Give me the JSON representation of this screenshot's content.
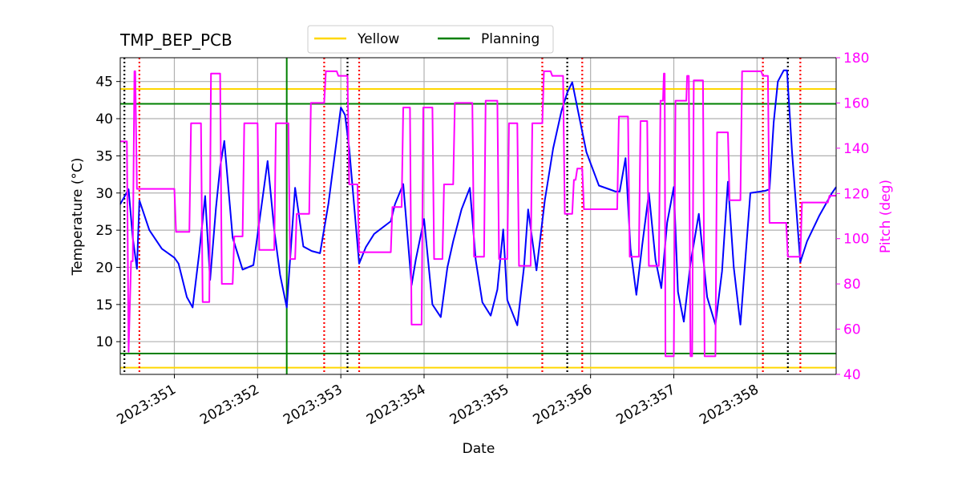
{
  "chart_data": {
    "type": "line",
    "title": "TMP_BEP_PCB",
    "xlabel": "Date",
    "ylabel_left": "Temperature ($^\\circ$C)",
    "ylabel_left_display": "Temperature (°C)",
    "ylabel_right": "Pitch (deg)",
    "xlim": [
      350.35,
      358.95
    ],
    "ylim_left": [
      5.6,
      48.2
    ],
    "ylim_right": [
      40,
      180
    ],
    "grid": true,
    "legend_position": "top-center",
    "x_ticks": [
      351,
      352,
      353,
      354,
      355,
      356,
      357,
      358
    ],
    "x_tick_labels": [
      "2023:351",
      "2023:352",
      "2023:353",
      "2023:354",
      "2023:355",
      "2023:356",
      "2023:357",
      "2023:358"
    ],
    "y_left_ticks": [
      10,
      15,
      20,
      25,
      30,
      35,
      40,
      45
    ],
    "y_right_ticks": [
      40,
      60,
      80,
      100,
      120,
      140,
      160,
      180
    ],
    "limits": [
      {
        "name": "Yellow",
        "color": "#ffd700",
        "values": [
          44.0,
          6.5
        ]
      },
      {
        "name": "Planning",
        "color": "#008000",
        "values": [
          42.0,
          8.4
        ]
      }
    ],
    "planning_vline": {
      "x": 352.35,
      "color": "#008000"
    },
    "colors": {
      "temperature": "#0000ff",
      "pitch": "#ff00ff",
      "black_lines": "#000000",
      "red_lines": "#ff0000"
    },
    "black_vlines": [
      350.4,
      353.08,
      355.72,
      358.37
    ],
    "red_vlines": [
      350.58,
      352.8,
      353.22,
      355.42,
      355.9,
      358.07,
      358.52
    ],
    "series": [
      {
        "name": "Temperature",
        "axis": "left",
        "color": "#0000ff",
        "x": [
          350.35,
          350.45,
          350.5,
          350.55,
          350.58,
          350.7,
          350.85,
          351.0,
          351.05,
          351.15,
          351.22,
          351.3,
          351.37,
          351.43,
          351.5,
          351.55,
          351.6,
          351.7,
          351.82,
          351.95,
          352.05,
          352.12,
          352.2,
          352.27,
          352.35,
          352.45,
          352.55,
          352.65,
          352.75,
          352.85,
          353.0,
          353.05,
          353.1,
          353.22,
          353.3,
          353.4,
          353.6,
          353.65,
          353.75,
          353.85,
          353.9,
          354.0,
          354.1,
          354.2,
          354.28,
          354.35,
          354.45,
          354.55,
          354.62,
          354.7,
          354.8,
          354.88,
          354.95,
          355.0,
          355.12,
          355.2,
          355.25,
          355.35,
          355.45,
          355.55,
          355.65,
          355.72,
          355.78,
          355.85,
          355.95,
          356.1,
          356.25,
          356.3,
          356.35,
          356.42,
          356.48,
          356.55,
          356.62,
          356.7,
          356.78,
          356.85,
          356.92,
          357.0,
          357.05,
          357.12,
          357.2,
          357.3,
          357.4,
          357.5,
          357.58,
          357.65,
          357.72,
          357.8,
          357.92,
          358.1,
          358.15,
          358.2,
          358.25,
          358.32,
          358.36,
          358.42,
          358.52,
          358.6,
          358.75,
          358.9,
          358.95
        ],
        "y": [
          28.5,
          30.5,
          24.0,
          19.8,
          29.0,
          25.0,
          22.5,
          21.3,
          20.5,
          16.0,
          14.6,
          22.0,
          29.6,
          18.3,
          28.0,
          33.5,
          37.0,
          24.0,
          19.7,
          20.3,
          28.5,
          34.3,
          25.0,
          19.0,
          14.6,
          30.7,
          22.8,
          22.2,
          21.9,
          28.5,
          41.5,
          40.5,
          36.0,
          20.5,
          22.7,
          24.5,
          26.2,
          28.5,
          31.2,
          17.6,
          21.0,
          26.5,
          15.0,
          13.3,
          20.0,
          23.5,
          27.8,
          30.7,
          21.0,
          15.3,
          13.5,
          17.0,
          25.1,
          15.6,
          12.2,
          20.0,
          27.8,
          19.6,
          29.0,
          36.0,
          41.0,
          43.5,
          44.9,
          41.0,
          35.5,
          31.0,
          30.4,
          30.2,
          30.2,
          34.7,
          22.5,
          16.3,
          23.0,
          30.0,
          21.0,
          17.2,
          26.0,
          30.8,
          16.7,
          12.7,
          20.5,
          27.2,
          16.0,
          12.3,
          19.5,
          31.5,
          20.0,
          12.3,
          30.0,
          30.3,
          30.5,
          39.5,
          45.0,
          46.5,
          46.5,
          35.5,
          20.7,
          23.5,
          27.0,
          30.0,
          30.8
        ]
      },
      {
        "name": "Pitch",
        "axis": "right",
        "color": "#ff00ff",
        "x": [
          350.35,
          350.43,
          350.45,
          350.48,
          350.5,
          350.52,
          350.53,
          350.55,
          350.58,
          351.0,
          351.02,
          351.18,
          351.2,
          351.32,
          351.34,
          351.42,
          351.44,
          351.55,
          351.57,
          351.7,
          351.72,
          351.82,
          351.84,
          352.0,
          352.02,
          352.2,
          352.22,
          352.37,
          352.39,
          352.45,
          352.47,
          352.62,
          352.64,
          352.8,
          352.82,
          352.95,
          352.97,
          353.08,
          353.1,
          353.2,
          353.22,
          353.6,
          353.62,
          353.73,
          353.75,
          353.83,
          353.85,
          353.97,
          353.99,
          354.1,
          354.12,
          354.22,
          354.24,
          354.35,
          354.37,
          354.58,
          354.6,
          354.72,
          354.74,
          354.88,
          354.9,
          355.0,
          355.02,
          355.12,
          355.14,
          355.28,
          355.3,
          355.42,
          355.44,
          355.52,
          355.54,
          355.67,
          355.69,
          355.78,
          355.8,
          355.82,
          355.84,
          355.9,
          355.92,
          356.25,
          356.27,
          356.32,
          356.34,
          356.45,
          356.47,
          356.58,
          356.6,
          356.68,
          356.7,
          356.82,
          356.84,
          356.87,
          356.88,
          356.89,
          356.9,
          357.0,
          357.02,
          357.15,
          357.16,
          357.18,
          357.2,
          357.22,
          357.24,
          357.35,
          357.37,
          357.5,
          357.52,
          357.65,
          357.67,
          357.8,
          357.82,
          358.05,
          358.07,
          358.13,
          358.15,
          358.35,
          358.37,
          358.45,
          358.47,
          358.52,
          358.54,
          358.85,
          358.87,
          358.95
        ],
        "y": [
          143,
          143,
          50,
          90,
          90,
          174,
          174,
          122,
          122,
          122,
          103,
          103,
          151,
          151,
          72,
          72,
          173,
          173,
          80,
          80,
          101,
          101,
          151,
          151,
          95,
          95,
          151,
          151,
          91,
          91,
          111,
          111,
          160,
          160,
          174,
          174,
          172,
          172,
          124,
          124,
          94,
          94,
          114,
          114,
          158,
          158,
          62,
          62,
          158,
          158,
          91,
          91,
          124,
          124,
          160,
          160,
          92,
          92,
          161,
          161,
          91,
          91,
          151,
          151,
          88,
          88,
          151,
          151,
          174,
          174,
          172,
          172,
          111,
          111,
          126,
          126,
          131,
          131,
          113,
          113,
          113,
          113,
          154,
          154,
          92,
          92,
          152,
          152,
          88,
          88,
          161,
          161,
          173,
          173,
          48,
          48,
          161,
          161,
          172,
          172,
          48,
          48,
          170,
          170,
          48,
          48,
          147,
          147,
          117,
          117,
          174,
          174,
          172,
          172,
          107,
          107,
          92,
          92,
          92,
          92,
          116,
          116,
          119,
          119
        ]
      }
    ]
  }
}
